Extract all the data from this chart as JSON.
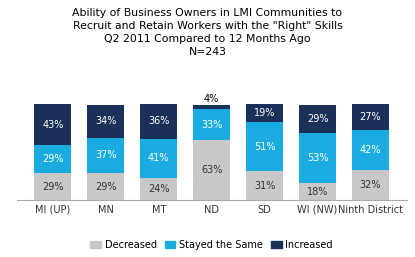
{
  "title_lines": [
    "Ability of Business Owners in LMI Communities to",
    "Recruit and Retain Workers with the \"Right\" Skills",
    "Q2 2011 Compared to 12 Months Ago",
    "N=243"
  ],
  "categories": [
    "MI (UP)",
    "MN",
    "MT",
    "ND",
    "SD",
    "WI (NW)",
    "Ninth District"
  ],
  "decreased": [
    29,
    29,
    24,
    63,
    31,
    18,
    32
  ],
  "stayed_same": [
    29,
    37,
    41,
    33,
    51,
    53,
    42
  ],
  "increased": [
    43,
    34,
    36,
    4,
    19,
    29,
    27
  ],
  "color_decreased": "#c8c8c8",
  "color_stayed": "#1aace0",
  "color_increased": "#1b3058",
  "legend_labels": [
    "Decreased",
    "Stayed the Same",
    "Increased"
  ],
  "bar_width": 0.7,
  "ylim": [
    0,
    108
  ],
  "title_fontsize": 7.8,
  "label_fontsize": 7.0,
  "tick_fontsize": 7.0,
  "legend_fontsize": 7.0,
  "background_color": "#ffffff"
}
